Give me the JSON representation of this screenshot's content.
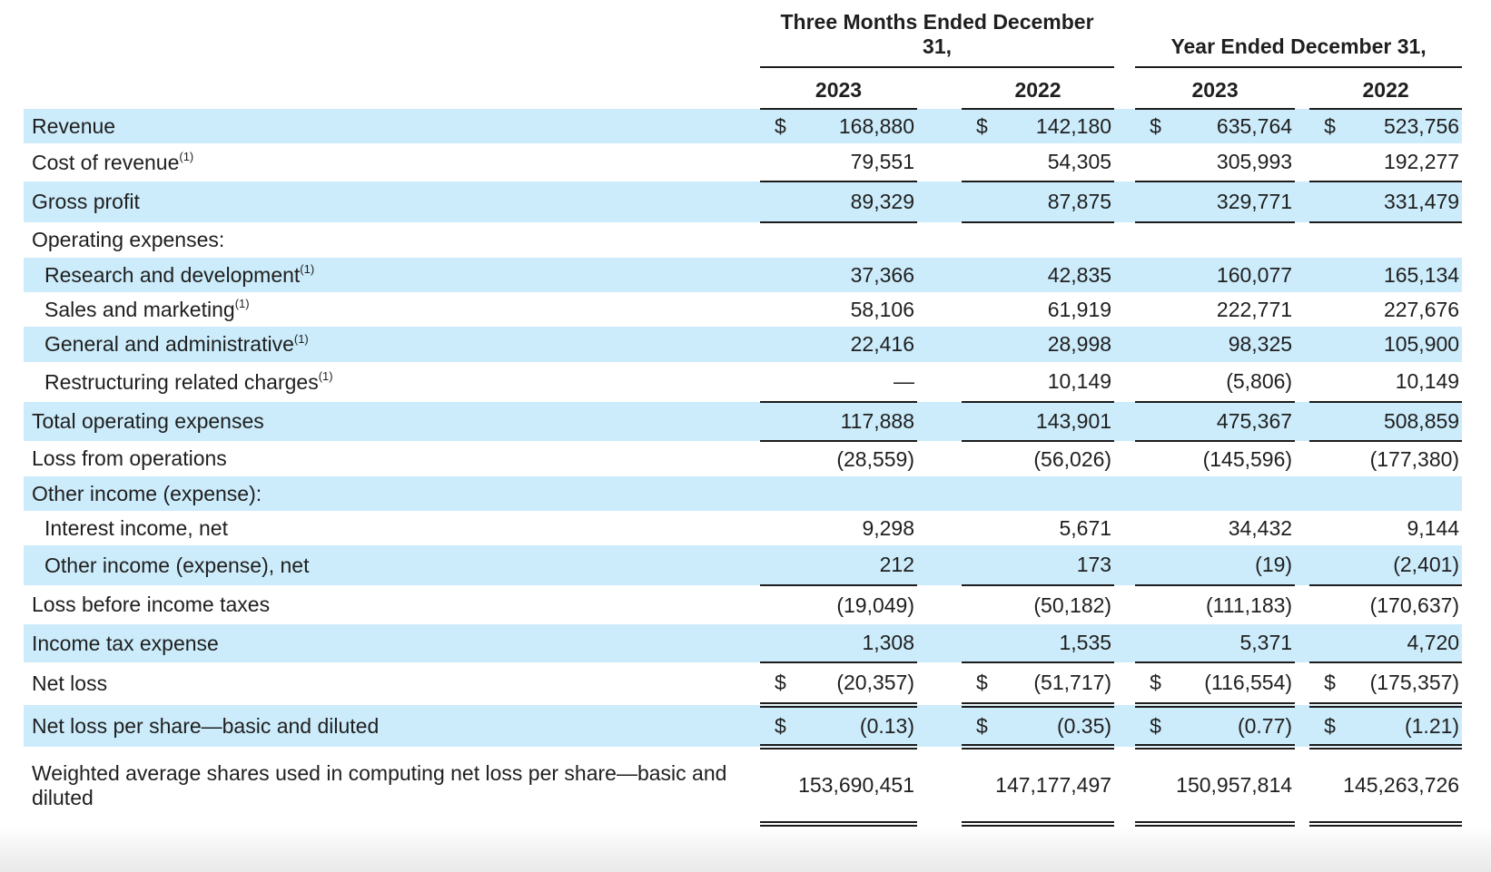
{
  "table": {
    "currency_symbol": "$",
    "footnote_marker": "(1)",
    "header": {
      "groups": [
        {
          "label": "Three Months Ended December 31,",
          "years": [
            "2023",
            "2022"
          ]
        },
        {
          "label": "Year Ended December 31,",
          "years": [
            "2023",
            "2022"
          ]
        }
      ]
    },
    "rows": [
      {
        "label": "Revenue",
        "sup": "",
        "indent": 0,
        "shaded": true,
        "dollar": true,
        "border": "none",
        "values": [
          "168,880",
          "142,180",
          "635,764",
          "523,756"
        ]
      },
      {
        "label": "Cost of revenue",
        "sup": "(1)",
        "indent": 0,
        "shaded": false,
        "dollar": false,
        "border": "single",
        "values": [
          "79,551",
          "54,305",
          "305,993",
          "192,277"
        ]
      },
      {
        "label": "Gross profit",
        "sup": "",
        "indent": 0,
        "shaded": true,
        "dollar": false,
        "border": "single",
        "values": [
          "89,329",
          "87,875",
          "329,771",
          "331,479"
        ]
      },
      {
        "label": "Operating expenses:",
        "sup": "",
        "indent": 0,
        "shaded": false,
        "dollar": false,
        "border": "none",
        "values": [
          "",
          "",
          "",
          ""
        ]
      },
      {
        "label": "Research and development",
        "sup": "(1)",
        "indent": 1,
        "shaded": true,
        "dollar": false,
        "border": "none",
        "values": [
          "37,366",
          "42,835",
          "160,077",
          "165,134"
        ]
      },
      {
        "label": "Sales and marketing",
        "sup": "(1)",
        "indent": 1,
        "shaded": false,
        "dollar": false,
        "border": "none",
        "values": [
          "58,106",
          "61,919",
          "222,771",
          "227,676"
        ]
      },
      {
        "label": "General and administrative",
        "sup": "(1)",
        "indent": 1,
        "shaded": true,
        "dollar": false,
        "border": "none",
        "values": [
          "22,416",
          "28,998",
          "98,325",
          "105,900"
        ]
      },
      {
        "label": "Restructuring related charges",
        "sup": "(1)",
        "indent": 1,
        "shaded": false,
        "dollar": false,
        "border": "single",
        "values": [
          "—",
          "10,149",
          "(5,806)",
          "10,149"
        ]
      },
      {
        "label": "Total operating expenses",
        "sup": "",
        "indent": 0,
        "shaded": true,
        "dollar": false,
        "border": "single",
        "values": [
          "117,888",
          "143,901",
          "475,367",
          "508,859"
        ]
      },
      {
        "label": "Loss from operations",
        "sup": "",
        "indent": 0,
        "shaded": false,
        "dollar": false,
        "border": "none",
        "values": [
          "(28,559)",
          "(56,026)",
          "(145,596)",
          "(177,380)"
        ]
      },
      {
        "label": "Other income (expense):",
        "sup": "",
        "indent": 0,
        "shaded": true,
        "dollar": false,
        "border": "none",
        "values": [
          "",
          "",
          "",
          ""
        ]
      },
      {
        "label": "Interest income, net",
        "sup": "",
        "indent": 1,
        "shaded": false,
        "dollar": false,
        "border": "none",
        "values": [
          "9,298",
          "5,671",
          "34,432",
          "9,144"
        ]
      },
      {
        "label": "Other income (expense), net",
        "sup": "",
        "indent": 1,
        "shaded": true,
        "dollar": false,
        "border": "single",
        "values": [
          "212",
          "173",
          "(19)",
          "(2,401)"
        ]
      },
      {
        "label": "Loss before income taxes",
        "sup": "",
        "indent": 0,
        "shaded": false,
        "dollar": false,
        "border": "none",
        "values": [
          "(19,049)",
          "(50,182)",
          "(111,183)",
          "(170,637)"
        ]
      },
      {
        "label": "Income tax expense",
        "sup": "",
        "indent": 0,
        "shaded": true,
        "dollar": false,
        "border": "single",
        "values": [
          "1,308",
          "1,535",
          "5,371",
          "4,720"
        ]
      },
      {
        "label": "Net loss",
        "sup": "",
        "indent": 0,
        "shaded": false,
        "dollar": true,
        "border": "double",
        "values": [
          "(20,357)",
          "(51,717)",
          "(116,554)",
          "(175,357)"
        ]
      },
      {
        "label": "Net loss per share—basic and diluted",
        "sup": "",
        "indent": 0,
        "shaded": true,
        "dollar": true,
        "border": "double",
        "values": [
          "(0.13)",
          "(0.35)",
          "(0.77)",
          "(1.21)"
        ]
      },
      {
        "label": "Weighted average shares used in computing net loss per share—basic and diluted",
        "sup": "",
        "indent": 0,
        "shaded": false,
        "dollar": false,
        "border": "double",
        "values": [
          "153,690,451",
          "147,177,497",
          "150,957,814",
          "145,263,726"
        ]
      }
    ]
  },
  "colors": {
    "row_highlight": "#ccecfb",
    "text": "#1f1f1f",
    "border": "#1c1c1c",
    "background": "#ffffff",
    "footer_strip": "#e9e9e9"
  }
}
